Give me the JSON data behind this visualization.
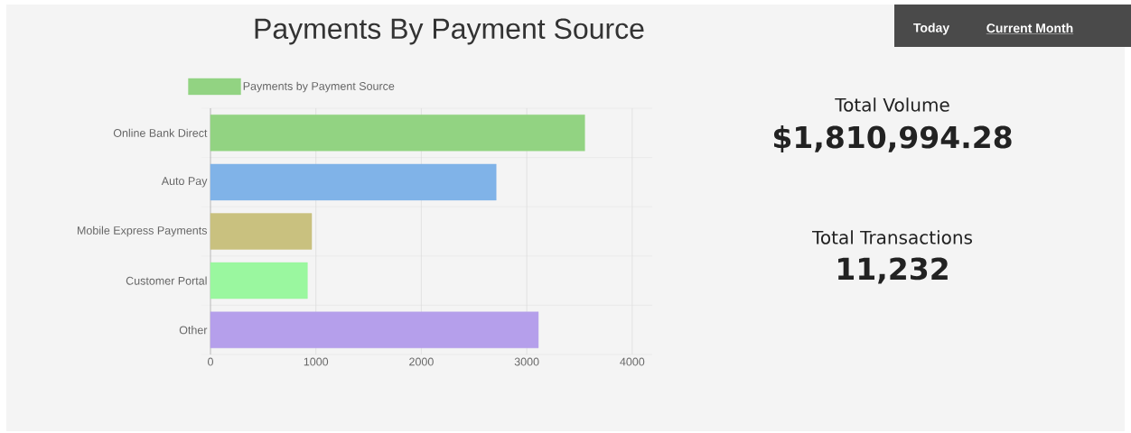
{
  "chart_data": [
    {
      "type": "bar",
      "orientation": "horizontal",
      "title": "Payments By Payment Source",
      "categories": [
        "Online Bank Direct",
        "Auto Pay",
        "Mobile Express Payments",
        "Customer Portal",
        "Other"
      ],
      "series": [
        {
          "name": "Payments by Payment Source",
          "values": [
            3550,
            2710,
            960,
            920,
            3110
          ],
          "colors": [
            "#92d382",
            "#80b3e8",
            "#c9c17f",
            "#9af79f",
            "#b59feb"
          ]
        }
      ],
      "xlim": [
        0,
        4190
      ],
      "xticks": [
        0,
        1000,
        2000,
        3000,
        4000
      ],
      "grid": true,
      "legend": "top left"
    },
    {
      "type": "other",
      "annotations": [
        "Today",
        "Current Month",
        "Total Volume",
        "$1,810,994.28",
        "Total Transactions",
        "11,232"
      ]
    }
  ]
}
